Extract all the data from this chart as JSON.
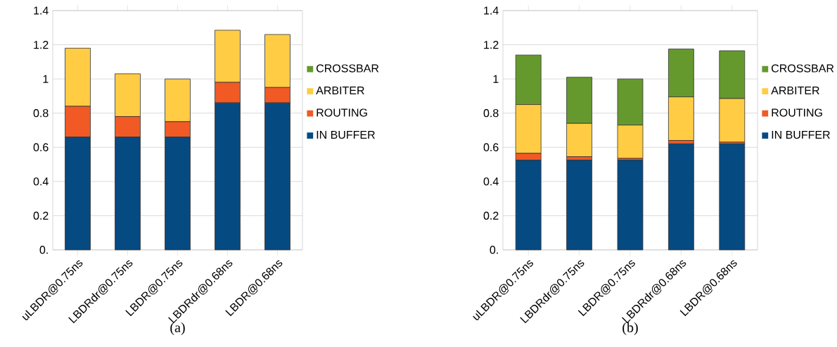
{
  "chart_data": [
    {
      "type": "bar",
      "stacked": true,
      "categories": [
        "uLBDR@0.75ns",
        "LBDRdr@0.75ns",
        "LBDR@0.75ns",
        "LBDRdr@0.68ns",
        "LBDR@0.68ns"
      ],
      "series": [
        {
          "name": "IN BUFFER",
          "color": "#064a82",
          "values": [
            0.66,
            0.66,
            0.66,
            0.86,
            0.86
          ]
        },
        {
          "name": "ROUTING",
          "color": "#f15a24",
          "values": [
            0.18,
            0.12,
            0.09,
            0.12,
            0.09
          ]
        },
        {
          "name": "ARBITER",
          "color": "#ffcc44",
          "values": [
            0.34,
            0.25,
            0.25,
            0.305,
            0.31
          ]
        },
        {
          "name": "CROSSBAR",
          "color": "#65992e",
          "values": [
            0,
            0,
            0,
            0,
            0
          ]
        }
      ],
      "ylim": [
        0,
        1.4
      ],
      "yticks": [
        {
          "value": 0,
          "label": "0."
        },
        0.2,
        0.4,
        0.6,
        0.8,
        1,
        1.2,
        1.4
      ],
      "grid": "y",
      "legend": "right",
      "annotations": [
        "(a)"
      ]
    },
    {
      "type": "bar",
      "stacked": true,
      "categories": [
        "uLBDR@0.75ns",
        "LBDRdr@0.75ns",
        "LBDR@0.75ns",
        "LBDRdr@0.68ns",
        "LBDR@0.68ns"
      ],
      "series": [
        {
          "name": "IN BUFFER",
          "color": "#064a82",
          "values": [
            0.525,
            0.525,
            0.525,
            0.62,
            0.62
          ]
        },
        {
          "name": "ROUTING",
          "color": "#f15a24",
          "values": [
            0.04,
            0.02,
            0.01,
            0.02,
            0.01
          ]
        },
        {
          "name": "ARBITER",
          "color": "#ffcc44",
          "values": [
            0.285,
            0.195,
            0.195,
            0.255,
            0.255
          ]
        },
        {
          "name": "CROSSBAR",
          "color": "#65992e",
          "values": [
            0.29,
            0.27,
            0.27,
            0.28,
            0.28
          ]
        }
      ],
      "ylim": [
        0,
        1.4
      ],
      "yticks": [
        {
          "value": 0,
          "label": "0."
        },
        0.2,
        0.4,
        0.6,
        0.8,
        1,
        1.2,
        1.4
      ],
      "grid": "y",
      "legend": "right",
      "annotations": [
        "(b)"
      ]
    }
  ]
}
